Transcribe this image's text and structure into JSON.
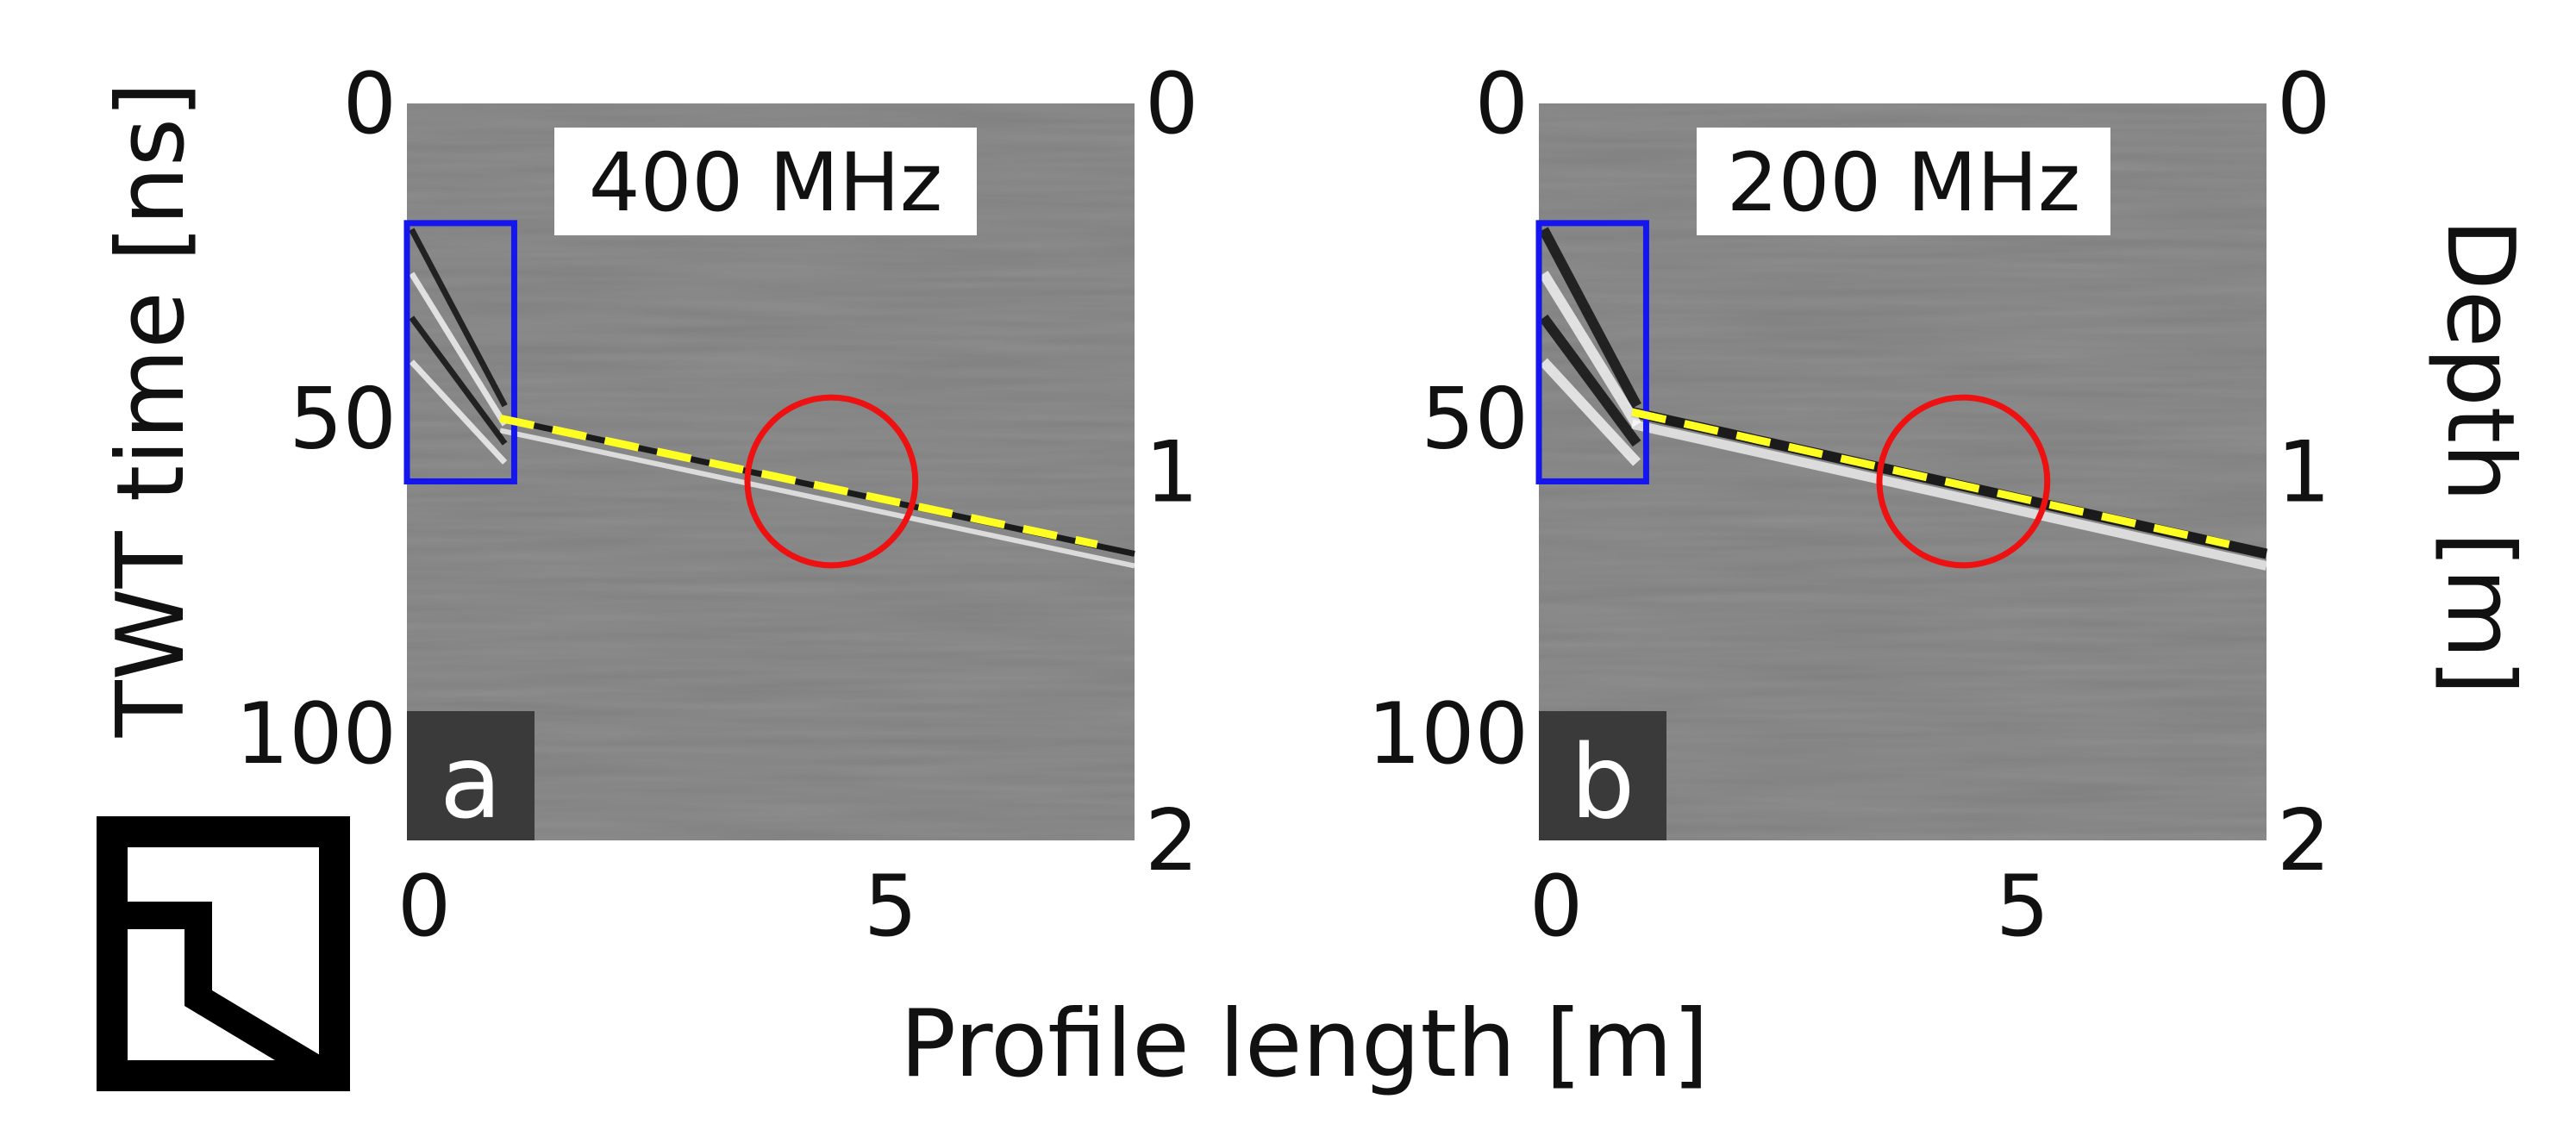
{
  "chart_data": {
    "type": "image",
    "shared_xlabel": "Profile length [m]",
    "ylabel_left": "TWT time [ns]",
    "ylabel_right": "Depth [m]",
    "panels": [
      {
        "id": "a",
        "letter": "a",
        "title": "400 MHz",
        "xlim": [
          0,
          7.8
        ],
        "ylim_time": [
          0,
          117
        ],
        "ylim_depth": [
          0,
          2
        ],
        "xticks": [
          0,
          5
        ],
        "xtick_labels": [
          "0",
          "5"
        ],
        "yticks_time": [
          0,
          50,
          100
        ],
        "ytick_labels_time": [
          "0",
          "50",
          "100"
        ],
        "yticks_depth": [
          0,
          1,
          2
        ],
        "ytick_labels_depth": [
          "0",
          "1",
          "2"
        ],
        "interpreted_line": {
          "x": [
            1.0,
            7.4
          ],
          "time_ns": [
            50,
            70
          ],
          "color": "#ffff22",
          "style": "dashed"
        },
        "blue_box": {
          "x": [
            0,
            1.15
          ],
          "time_ns": [
            19,
            60
          ],
          "color": "#1515ee"
        },
        "red_circle": {
          "x": 4.55,
          "time_ns": 60,
          "radius_m": 0.9,
          "color": "#ee1111"
        }
      },
      {
        "id": "b",
        "letter": "b",
        "title": "200 MHz",
        "xlim": [
          0,
          7.8
        ],
        "ylim_time": [
          0,
          117
        ],
        "ylim_depth": [
          0,
          2
        ],
        "xticks": [
          0,
          5
        ],
        "xtick_labels": [
          "0",
          "5"
        ],
        "yticks_time": [
          0,
          50,
          100
        ],
        "ytick_labels_time": [
          "0",
          "50",
          "100"
        ],
        "yticks_depth": [
          0,
          1,
          2
        ],
        "ytick_labels_depth": [
          "0",
          "1",
          "2"
        ],
        "interpreted_line": {
          "x": [
            1.0,
            7.4
          ],
          "time_ns": [
            49,
            70
          ],
          "color": "#ffff22",
          "style": "dashed"
        },
        "blue_box": {
          "x": [
            0,
            1.15
          ],
          "time_ns": [
            19,
            60
          ],
          "color": "#1515ee"
        },
        "red_circle": {
          "x": 4.55,
          "time_ns": 60,
          "radius_m": 0.9,
          "color": "#ee1111"
        }
      }
    ],
    "colors": {
      "background": "#7f7f7f",
      "label_box": "#ffffff",
      "letter_box": "#3a3a3a"
    }
  }
}
